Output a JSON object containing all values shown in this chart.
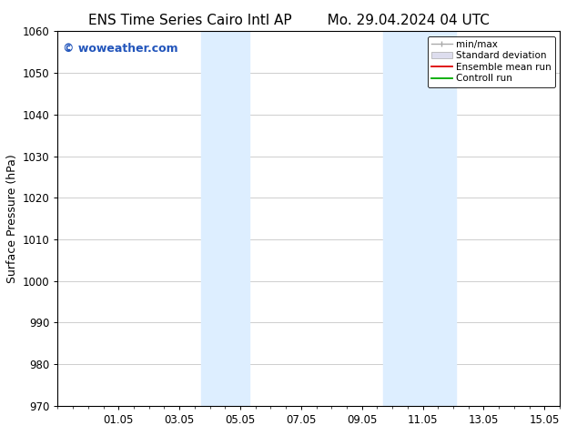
{
  "title_left": "ENS Time Series Cairo Intl AP",
  "title_right": "Mo. 29.04.2024 04 UTC",
  "ylabel": "Surface Pressure (hPa)",
  "ylim": [
    970,
    1060
  ],
  "yticks": [
    970,
    980,
    990,
    1000,
    1010,
    1020,
    1030,
    1040,
    1050,
    1060
  ],
  "xtick_labels": [
    "01.05",
    "03.05",
    "05.05",
    "07.05",
    "09.05",
    "11.05",
    "13.05",
    "15.05"
  ],
  "xtick_positions": [
    2,
    4,
    6,
    8,
    10,
    12,
    14,
    16
  ],
  "xlim": [
    0,
    16.5
  ],
  "shaded_regions": [
    {
      "x_start": 4.7,
      "x_end": 6.3,
      "color": "#ddeeff"
    },
    {
      "x_start": 10.7,
      "x_end": 13.1,
      "color": "#ddeeff"
    }
  ],
  "watermark_text": "© woweather.com",
  "watermark_color": "#2255bb",
  "legend_labels": [
    "min/max",
    "Standard deviation",
    "Ensemble mean run",
    "Controll run"
  ],
  "legend_colors_line": [
    "#aaaaaa",
    "#cccccc",
    "#dd0000",
    "#00aa00"
  ],
  "background_color": "#ffffff",
  "plot_bg_color": "#ffffff",
  "grid_color": "#bbbbbb",
  "title_fontsize": 11,
  "label_fontsize": 9,
  "tick_fontsize": 8.5,
  "watermark_fontsize": 9,
  "legend_fontsize": 7.5
}
